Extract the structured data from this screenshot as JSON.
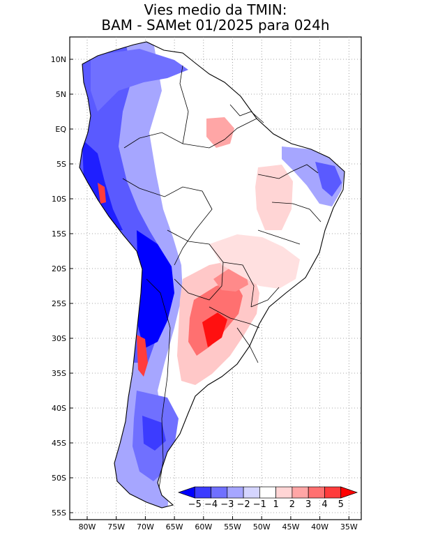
{
  "title": {
    "line1": "Vies medio da TMIN:",
    "line2": "BAM - SAMet 01/2025  para 024h"
  },
  "axes": {
    "lon_labels": [
      "80W",
      "75W",
      "70W",
      "65W",
      "60W",
      "55W",
      "50W",
      "45W",
      "40W",
      "35W"
    ],
    "lat_labels": [
      "10N",
      "5N",
      "EQ",
      "5S",
      "10S",
      "15S",
      "20S",
      "25S",
      "30S",
      "35S",
      "40S",
      "45S",
      "50S",
      "55S"
    ]
  },
  "colorbar": {
    "labels": [
      "-5",
      "-4",
      "-3",
      "-2",
      "-1",
      "1",
      "2",
      "3",
      "4",
      "5"
    ],
    "colors": [
      "#0000ff",
      "#3c3cff",
      "#7070ff",
      "#a6a6ff",
      "#d5d5ff",
      "#ffffff",
      "#ffd5d5",
      "#ffa6a6",
      "#ff7070",
      "#ff3c3c",
      "#ff0000"
    ]
  },
  "legend_colors": {
    "strong_cold": "#0000ff",
    "cold": "#5a5aff",
    "mild_cold": "#a6a6ff",
    "neutral": "#ffffff",
    "mild_warm": "#ffc8c8",
    "warm": "#ff7070",
    "strong_warm": "#ff1010"
  }
}
